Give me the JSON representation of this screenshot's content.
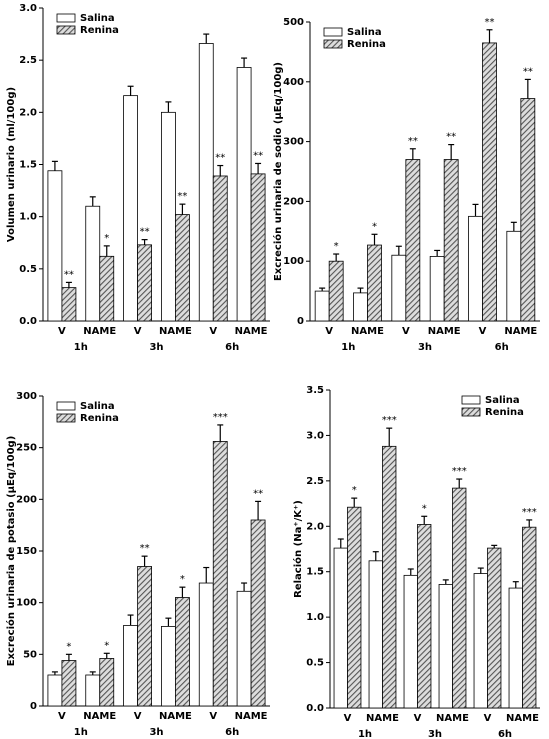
{
  "chart_data": [
    {
      "type": "bar",
      "y_label": "Volumen urinario (ml/100g)",
      "categories": [
        "V",
        "NAME",
        "V",
        "NAME",
        "V",
        "NAME"
      ],
      "groups": [
        "1h",
        "3h",
        "6h"
      ],
      "series": [
        {
          "name": "Salina",
          "color": "#ffffff",
          "values": [
            1.44,
            1.1,
            2.16,
            2.0,
            2.66,
            2.43
          ],
          "errors": [
            0.09,
            0.09,
            0.09,
            0.1,
            0.09,
            0.09
          ]
        },
        {
          "name": "Renina",
          "color": "#555555",
          "values": [
            0.32,
            0.62,
            0.73,
            1.02,
            1.39,
            1.41
          ],
          "errors": [
            0.05,
            0.1,
            0.05,
            0.1,
            0.1,
            0.1
          ],
          "annotations": [
            "**",
            "*",
            "**",
            "**",
            "**",
            "**"
          ]
        }
      ],
      "ylim": [
        0,
        3
      ],
      "yticks": [
        {
          "value": 0,
          "label": "0.0"
        },
        {
          "value": 0.5,
          "label": "0.5"
        },
        {
          "value": 1,
          "label": "1.0"
        },
        {
          "value": 1.5,
          "label": "1.5"
        },
        {
          "value": 2,
          "label": "2.0"
        },
        {
          "value": 2.5,
          "label": "2.5"
        },
        {
          "value": 3,
          "label": "3.0"
        }
      ],
      "legend": "upper-left"
    },
    {
      "type": "bar",
      "y_label": "Excreción urinaria de sodio (µEq/100g)",
      "categories": [
        "V",
        "NAME",
        "V",
        "NAME",
        "V",
        "NAME"
      ],
      "groups": [
        "1h",
        "3h",
        "6h"
      ],
      "series": [
        {
          "name": "Salina",
          "color": "#ffffff",
          "values": [
            50,
            47,
            110,
            108,
            175,
            150
          ],
          "errors": [
            5,
            8,
            15,
            10,
            20,
            15
          ]
        },
        {
          "name": "Renina",
          "color": "#555555",
          "values": [
            100,
            127,
            270,
            270,
            465,
            372
          ],
          "errors": [
            12,
            18,
            18,
            25,
            22,
            32
          ],
          "annotations": [
            "*",
            "*",
            "**",
            "**",
            "**",
            "**"
          ]
        }
      ],
      "ylim": [
        0,
        500
      ],
      "yticks": [
        0,
        100,
        200,
        300,
        400,
        500
      ],
      "legend": "upper-left"
    },
    {
      "type": "bar",
      "y_label": "Excreción urinaria de potasio (µEq/100g)",
      "categories": [
        "V",
        "NAME",
        "V",
        "NAME",
        "V",
        "NAME"
      ],
      "groups": [
        "1h",
        "3h",
        "6h"
      ],
      "series": [
        {
          "name": "Salina",
          "color": "#ffffff",
          "values": [
            30,
            30,
            78,
            77,
            119,
            111
          ],
          "errors": [
            3,
            3,
            10,
            8,
            15,
            8
          ]
        },
        {
          "name": "Renina",
          "color": "#555555",
          "values": [
            44,
            46,
            135,
            105,
            256,
            180
          ],
          "errors": [
            6,
            5,
            10,
            10,
            16,
            18
          ],
          "annotations": [
            "*",
            "*",
            "**",
            "*",
            "***",
            "**"
          ]
        }
      ],
      "ylim": [
        0,
        300
      ],
      "yticks": [
        0,
        50,
        100,
        150,
        200,
        250,
        300
      ],
      "legend": "upper-left"
    },
    {
      "type": "bar",
      "y_label": "Relación (Na⁺/K⁺)",
      "categories": [
        "V",
        "NAME",
        "V",
        "NAME",
        "V",
        "NAME"
      ],
      "groups": [
        "1h",
        "3h",
        "6h"
      ],
      "series": [
        {
          "name": "Salina",
          "color": "#ffffff",
          "values": [
            1.76,
            1.62,
            1.46,
            1.36,
            1.48,
            1.32
          ],
          "errors": [
            0.1,
            0.1,
            0.07,
            0.05,
            0.06,
            0.07
          ]
        },
        {
          "name": "Renina",
          "color": "#555555",
          "values": [
            2.21,
            2.88,
            2.02,
            2.42,
            1.76,
            1.99
          ],
          "errors": [
            0.1,
            0.2,
            0.09,
            0.1,
            0.03,
            0.08
          ],
          "annotations": [
            "*",
            "***",
            "*",
            "***",
            null,
            "***"
          ]
        }
      ],
      "ylim": [
        0,
        3.5
      ],
      "yticks": [
        {
          "value": 0,
          "label": "0.0"
        },
        {
          "value": 0.5,
          "label": "0.5"
        },
        {
          "value": 1,
          "label": "1.0"
        },
        {
          "value": 1.5,
          "label": "1.5"
        },
        {
          "value": 2,
          "label": "2.0"
        },
        {
          "value": 2.5,
          "label": "2.5"
        },
        {
          "value": 3,
          "label": "3.0"
        },
        {
          "value": 3.5,
          "label": "3.5"
        }
      ],
      "legend": "upper-right"
    }
  ]
}
